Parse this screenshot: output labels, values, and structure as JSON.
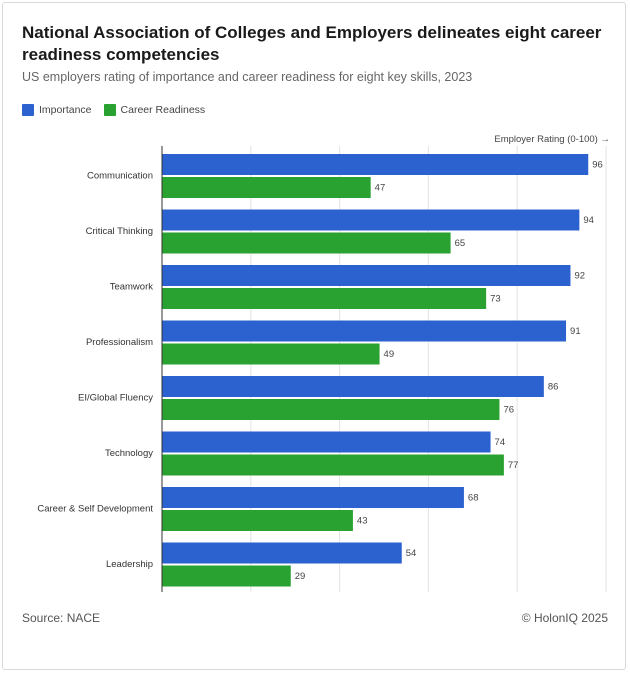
{
  "title": "National Association of Colleges and Employers delineates eight career readiness competencies",
  "subtitle": "US employers rating of importance and career readiness for eight key skills, 2023",
  "axis_note": "Employer Rating (0-100) →",
  "source": "Source: NACE",
  "credit": "© HolonIQ 2025",
  "colors": {
    "importance": "#2c62cf",
    "readiness": "#2aa232",
    "grid": "#e3e3e3",
    "axis": "#333333"
  },
  "chart_data": {
    "type": "bar",
    "orientation": "horizontal",
    "categories": [
      "Communication",
      "Critical Thinking",
      "Teamwork",
      "Professionalism",
      "EI/Global Fluency",
      "Technology",
      "Career & Self Development",
      "Leadership"
    ],
    "series": [
      {
        "name": "Importance",
        "values": [
          96,
          94,
          92,
          91,
          86,
          74,
          68,
          54
        ]
      },
      {
        "name": "Career Readiness",
        "values": [
          47,
          65,
          73,
          49,
          76,
          77,
          43,
          29
        ]
      }
    ],
    "xlim": [
      0,
      100
    ],
    "grid": true,
    "legend": "top-left"
  }
}
